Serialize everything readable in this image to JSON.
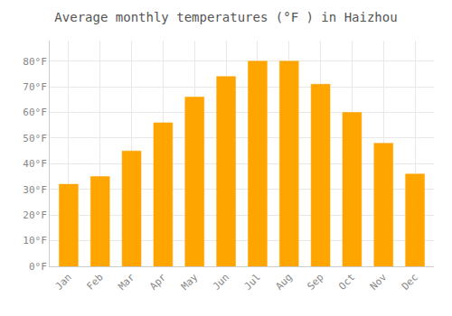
{
  "chart_data": {
    "type": "bar",
    "title": "Average monthly temperatures (°F ) in Haizhou",
    "categories": [
      "Jan",
      "Feb",
      "Mar",
      "Apr",
      "May",
      "Jun",
      "Jul",
      "Aug",
      "Sep",
      "Oct",
      "Nov",
      "Dec"
    ],
    "values": [
      32,
      35,
      45,
      56,
      66,
      74,
      80,
      80,
      71,
      60,
      48,
      36
    ],
    "color": "#FFA500",
    "ylim": [
      0,
      88
    ],
    "yticks": [
      {
        "value": 0,
        "label": "0°F"
      },
      {
        "value": 10,
        "label": "10°F"
      },
      {
        "value": 20,
        "label": "20°F"
      },
      {
        "value": 30,
        "label": "30°F"
      },
      {
        "value": 40,
        "label": "40°F"
      },
      {
        "value": 50,
        "label": "50°F"
      },
      {
        "value": 60,
        "label": "60°F"
      },
      {
        "value": 70,
        "label": "70°F"
      },
      {
        "value": 80,
        "label": "80°F"
      }
    ],
    "grid": true
  }
}
